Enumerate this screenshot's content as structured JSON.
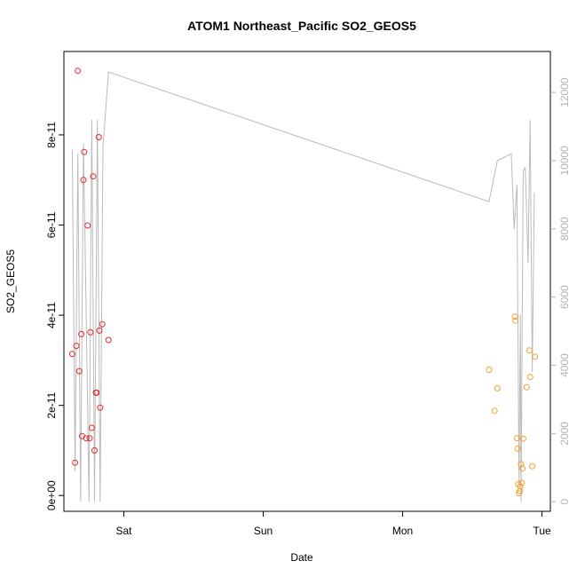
{
  "chart_data": {
    "type": "scatter",
    "title": "ATOM1 Northeast_Pacific SO2_GEOS5",
    "xlabel": "Date",
    "ylabel": "SO2_GEOS5",
    "x_unit": "days",
    "x_ticks": [
      {
        "label": "Sat",
        "value": 0
      },
      {
        "label": "Sun",
        "value": 1
      },
      {
        "label": "Mon",
        "value": 2
      },
      {
        "label": "Tue",
        "value": 3
      }
    ],
    "xlim": [
      -0.43,
      3.06
    ],
    "ylim": [
      -3.5e-12,
      9.85e-11
    ],
    "y_ticks": [
      {
        "label": "0e+00",
        "value": 0
      },
      {
        "label": "2e-11",
        "value": 2e-11
      },
      {
        "label": "4e-11",
        "value": 4e-11
      },
      {
        "label": "6e-11",
        "value": 6e-11
      },
      {
        "label": "8e-11",
        "value": 8e-11
      }
    ],
    "y2lim": [
      -280,
      13200
    ],
    "y2_ticks": [
      {
        "label": "0",
        "value": 0
      },
      {
        "label": "2000",
        "value": 2000
      },
      {
        "label": "4000",
        "value": 4000
      },
      {
        "label": "6000",
        "value": 6000
      },
      {
        "label": "8000",
        "value": 8000
      },
      {
        "label": "10000",
        "value": 10000
      },
      {
        "label": "12000",
        "value": 12000
      }
    ],
    "colors": {
      "series1": "#e8282b",
      "series2": "#f0a030",
      "altitude": "#bbbbbb",
      "right_axis": "#b3b3b3"
    },
    "series": [
      {
        "points": [
          [
            -0.37,
            3.14e-11
          ],
          [
            -0.35,
            7.3e-12
          ],
          [
            -0.34,
            3.32e-11
          ],
          [
            -0.33,
            9.42e-11
          ],
          [
            -0.32,
            2.76e-11
          ],
          [
            -0.305,
            3.58e-11
          ],
          [
            -0.3,
            1.32e-11
          ],
          [
            -0.29,
            7e-11
          ],
          [
            -0.285,
            7.62e-11
          ],
          [
            -0.27,
            1.27e-11
          ],
          [
            -0.26,
            5.99e-11
          ],
          [
            -0.245,
            1.27e-11
          ],
          [
            -0.24,
            3.62e-11
          ],
          [
            -0.23,
            1.5e-11
          ],
          [
            -0.22,
            7.08e-11
          ],
          [
            -0.21,
            1e-11
          ],
          [
            -0.2,
            2.28e-11
          ],
          [
            -0.195,
            2.28e-11
          ],
          [
            -0.18,
            7.95e-11
          ],
          [
            -0.175,
            3.66e-11
          ],
          [
            -0.17,
            1.95e-11
          ],
          [
            -0.155,
            3.8e-11
          ],
          [
            -0.11,
            3.45e-11
          ]
        ]
      },
      {
        "points": [
          [
            2.62,
            2.79e-11
          ],
          [
            2.66,
            1.88e-11
          ],
          [
            2.68,
            2.38e-11
          ],
          [
            2.805,
            3.97e-11
          ],
          [
            2.81,
            3.88e-11
          ],
          [
            2.82,
            1.27e-11
          ],
          [
            2.825,
            1.04e-11
          ],
          [
            2.83,
            2.5e-12
          ],
          [
            2.835,
            5e-13
          ],
          [
            2.84,
            1e-12
          ],
          [
            2.845,
            2e-12
          ],
          [
            2.85,
            7e-12
          ],
          [
            2.855,
            2.8e-12
          ],
          [
            2.86,
            6e-12
          ],
          [
            2.865,
            1.26e-11
          ],
          [
            2.89,
            2.4e-11
          ],
          [
            2.91,
            3.22e-11
          ],
          [
            2.915,
            2.63e-11
          ],
          [
            2.93,
            6.5e-12
          ],
          [
            2.95,
            3.08e-11
          ]
        ]
      }
    ],
    "altitude_line": [
      [
        -0.37,
        10300
      ],
      [
        -0.35,
        900
      ],
      [
        -0.33,
        10200
      ],
      [
        -0.31,
        0
      ],
      [
        -0.29,
        10500
      ],
      [
        -0.27,
        5500
      ],
      [
        -0.25,
        0
      ],
      [
        -0.23,
        11200
      ],
      [
        -0.21,
        0
      ],
      [
        -0.19,
        11200
      ],
      [
        -0.17,
        0
      ],
      [
        -0.15,
        10400
      ],
      [
        -0.11,
        12600
      ],
      [
        2.62,
        8800
      ],
      [
        2.68,
        10000
      ],
      [
        2.78,
        10200
      ],
      [
        2.8,
        8000
      ],
      [
        2.82,
        9300
      ],
      [
        2.835,
        500
      ],
      [
        2.845,
        5500
      ],
      [
        2.85,
        0
      ],
      [
        2.865,
        9700
      ],
      [
        2.88,
        9800
      ],
      [
        2.9,
        7000
      ],
      [
        2.915,
        11200
      ],
      [
        2.93,
        3800
      ],
      [
        2.945,
        9050
      ]
    ]
  }
}
